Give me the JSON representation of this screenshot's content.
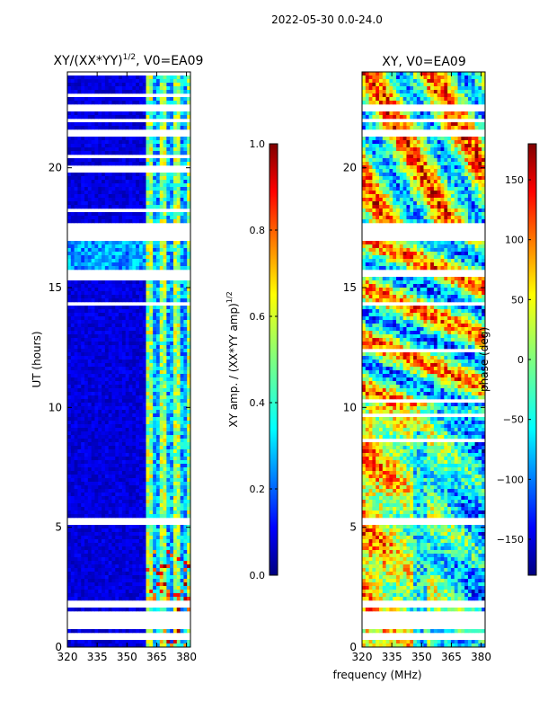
{
  "suptitle": "2022-05-30 0.0-24.0",
  "chart_data": [
    {
      "type": "heatmap",
      "title": "XY/(XX*YY)",
      "title_power": "1/2",
      "title_tail": ", V0=EA09",
      "xlabel": "frequency (MHz)",
      "ylabel": "UT (hours)",
      "xlim": [
        320,
        382
      ],
      "ylim": [
        0,
        24
      ],
      "xticks": [
        320,
        335,
        350,
        365,
        380
      ],
      "yticks": [
        0,
        5,
        10,
        15,
        20
      ],
      "colorbar": {
        "label": "XY amp. / (XX*YY amp)",
        "label_power": "1/2",
        "range": [
          0.0,
          1.0
        ],
        "ticks": [
          "0.0",
          "0.2",
          "0.4",
          "0.6",
          "0.8",
          "1.0"
        ],
        "colormap": "jet"
      },
      "data_gaps_hours": [
        [
          0.35,
          0.55
        ],
        [
          0.7,
          1.5
        ],
        [
          1.65,
          1.95
        ],
        [
          4.0,
          4.1
        ],
        [
          5.1,
          5.4
        ],
        [
          15.5,
          15.8
        ],
        [
          16.95,
          17.7
        ],
        [
          21.3,
          21.55
        ],
        [
          21.9,
          22.1
        ],
        [
          22.4,
          22.6
        ]
      ]
    },
    {
      "type": "heatmap",
      "title": "XY, V0=EA09",
      "xlabel": "frequency (MHz)",
      "ylabel": "",
      "xlim": [
        320,
        382
      ],
      "ylim": [
        0,
        24
      ],
      "xticks": [
        320,
        335,
        350,
        365,
        380
      ],
      "yticks": [
        0,
        5,
        10,
        15,
        20
      ],
      "colorbar": {
        "label": "phase (deg)",
        "range": [
          -180,
          180
        ],
        "ticks": [
          "150",
          "100",
          "50",
          "0",
          "−50",
          "−100",
          "−150"
        ],
        "colormap": "jet"
      }
    }
  ],
  "colors": {
    "jet": [
      "#00007f",
      "#0000ff",
      "#007fff",
      "#00ffff",
      "#7fff7f",
      "#ffff00",
      "#ff7f00",
      "#ff0000",
      "#7f0000"
    ],
    "background": "#ffffff",
    "axis": "#000000"
  }
}
